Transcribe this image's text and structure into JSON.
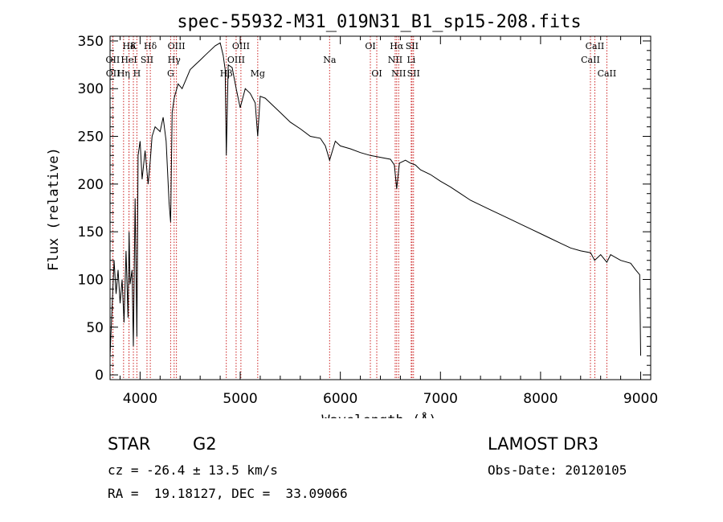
{
  "chart_data": {
    "type": "line",
    "title": "spec-55932-M31_019N31_B1_sp15-208.fits",
    "xlabel": "Wavelength (Å)",
    "ylabel": "Flux (relative)",
    "xlim": [
      3700,
      9100
    ],
    "ylim": [
      -5,
      355
    ],
    "xticks": [
      4000,
      5000,
      6000,
      7000,
      8000,
      9000
    ],
    "yticks": [
      0,
      50,
      100,
      150,
      200,
      250,
      300,
      350
    ],
    "series": [
      {
        "name": "spectrum",
        "x": [
          3700,
          3720,
          3740,
          3760,
          3780,
          3800,
          3820,
          3840,
          3860,
          3880,
          3890,
          3900,
          3920,
          3933,
          3950,
          3968,
          3980,
          4000,
          4020,
          4050,
          4080,
          4102,
          4120,
          4150,
          4200,
          4230,
          4260,
          4290,
          4305,
          4320,
          4340,
          4380,
          4420,
          4460,
          4500,
          4550,
          4600,
          4650,
          4700,
          4750,
          4800,
          4830,
          4850,
          4861,
          4880,
          4920,
          4960,
          5000,
          5050,
          5100,
          5150,
          5175,
          5200,
          5250,
          5300,
          5400,
          5500,
          5600,
          5700,
          5800,
          5850,
          5893,
          5950,
          6000,
          6100,
          6200,
          6300,
          6400,
          6500,
          6540,
          6563,
          6590,
          6650,
          6700,
          6750,
          6800,
          6900,
          7000,
          7100,
          7200,
          7300,
          7400,
          7500,
          7600,
          7700,
          7800,
          7900,
          8000,
          8100,
          8200,
          8300,
          8400,
          8500,
          8540,
          8600,
          8662,
          8700,
          8800,
          8900,
          8950,
          8990,
          9000
        ],
        "flux": [
          20,
          70,
          120,
          85,
          110,
          75,
          100,
          55,
          130,
          60,
          150,
          95,
          110,
          30,
          185,
          40,
          230,
          245,
          205,
          235,
          200,
          225,
          250,
          260,
          255,
          270,
          245,
          180,
          160,
          275,
          290,
          305,
          300,
          310,
          320,
          325,
          330,
          335,
          340,
          345,
          348,
          335,
          320,
          230,
          325,
          322,
          300,
          280,
          300,
          295,
          285,
          250,
          292,
          290,
          285,
          275,
          265,
          258,
          250,
          248,
          240,
          225,
          245,
          240,
          237,
          233,
          230,
          228,
          226,
          220,
          195,
          222,
          225,
          222,
          220,
          215,
          210,
          203,
          197,
          190,
          183,
          178,
          173,
          168,
          163,
          158,
          153,
          148,
          143,
          138,
          133,
          130,
          128,
          120,
          126,
          118,
          126,
          120,
          117,
          110,
          105,
          20
        ]
      }
    ],
    "lines": [
      {
        "label": "Hδ",
        "x": 3889,
        "row": 0
      },
      {
        "label": "K",
        "x": 3933,
        "row": 0
      },
      {
        "label": "Hδ",
        "x": 4102,
        "row": 0
      },
      {
        "label": "OII",
        "x": 3727,
        "row": 1
      },
      {
        "label": "HeI",
        "x": 3889,
        "row": 1
      },
      {
        "label": "SII",
        "x": 4069,
        "row": 1
      },
      {
        "label": "OII",
        "x": 3729,
        "row": 2
      },
      {
        "label": "Hη",
        "x": 3835,
        "row": 2
      },
      {
        "label": "H",
        "x": 3968,
        "row": 2
      },
      {
        "label": "OIII",
        "x": 4363,
        "row": 0
      },
      {
        "label": "Hγ",
        "x": 4340,
        "row": 1
      },
      {
        "label": "G",
        "x": 4305,
        "row": 2
      },
      {
        "label": "OIII",
        "x": 5007,
        "row": 0
      },
      {
        "label": "OIII",
        "x": 4959,
        "row": 1
      },
      {
        "label": "Hβ",
        "x": 4861,
        "row": 2
      },
      {
        "label": "Mg",
        "x": 5175,
        "row": 2
      },
      {
        "label": "Na",
        "x": 5893,
        "row": 1
      },
      {
        "label": "OI",
        "x": 6300,
        "row": 0
      },
      {
        "label": "OI",
        "x": 6364,
        "row": 2
      },
      {
        "label": "Hα",
        "x": 6563,
        "row": 0
      },
      {
        "label": "SII",
        "x": 6716,
        "row": 0
      },
      {
        "label": "NII",
        "x": 6548,
        "row": 1
      },
      {
        "label": "Li",
        "x": 6708,
        "row": 1
      },
      {
        "label": "NII",
        "x": 6583,
        "row": 2
      },
      {
        "label": "SII",
        "x": 6731,
        "row": 2
      },
      {
        "label": "CaII",
        "x": 8542,
        "row": 0
      },
      {
        "label": "CaII",
        "x": 8498,
        "row": 1
      },
      {
        "label": "CaII",
        "x": 8662,
        "row": 2
      }
    ],
    "colors": {
      "spectrum": "#000000",
      "line_marker": "#cc2222"
    }
  },
  "info": {
    "class": "STAR",
    "subclass": "G2",
    "survey": "LAMOST DR3",
    "cz": "cz = -26.4 ± 13.5 km/s",
    "obs_date": "Obs-Date: 20120105",
    "radec": "RA =  19.18127, DEC =  33.09066"
  }
}
